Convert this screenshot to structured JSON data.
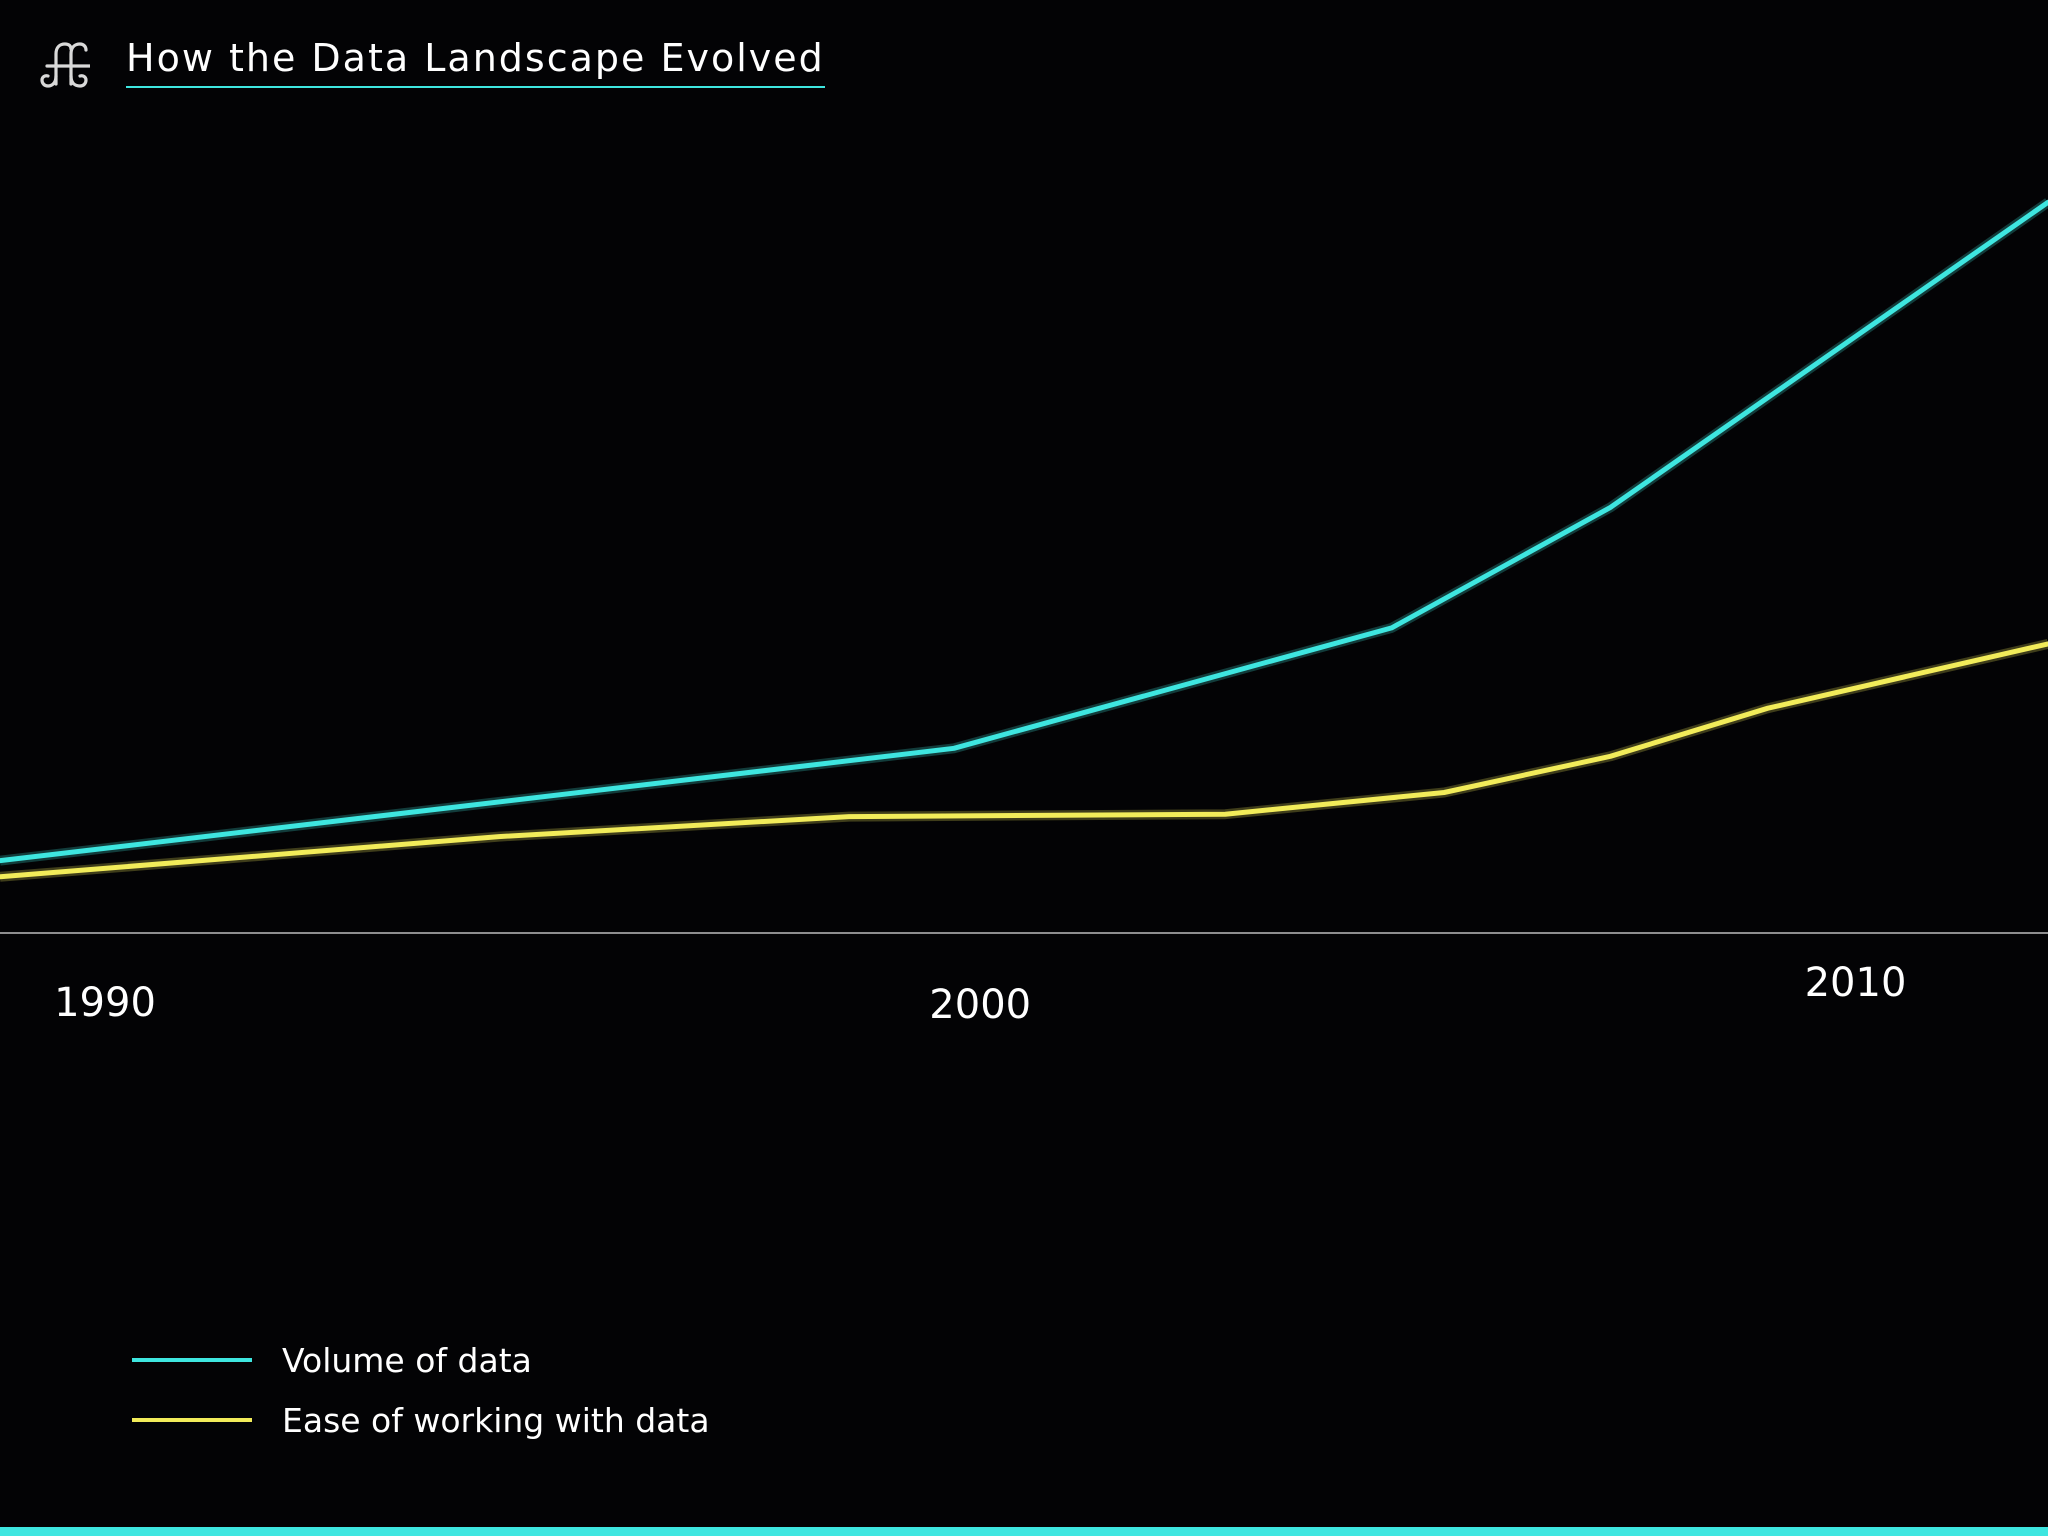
{
  "header": {
    "logo_icon": "command-key-icon",
    "title": "How the Data Landscape Evolved"
  },
  "colors": {
    "background": "#030305",
    "accent": "#3ee6e0",
    "axis": "#bdbdbd"
  },
  "chart_data": {
    "type": "line",
    "title": "How the Data Landscape Evolved",
    "xlabel": "",
    "ylabel": "",
    "x_ticks": [
      "1990",
      "2000",
      "2010"
    ],
    "xlim": [
      1988.8,
      2012.2
    ],
    "ylim": [
      0,
      100
    ],
    "grid": false,
    "y_axis_visible": false,
    "legend_position": "bottom-left",
    "series": [
      {
        "name": "Volume of data",
        "color": "#3ee6e0",
        "x": [
          1988.8,
          1999.7,
          2004.7,
          2007.2,
          2012.2
        ],
        "y": [
          9,
          23,
          38,
          53,
          91
        ]
      },
      {
        "name": "Ease of working with data",
        "color": "#f2ec5a",
        "x": [
          1988.8,
          1994.5,
          1998.5,
          2002.8,
          2005.3,
          2007.2,
          2009.0,
          2012.2
        ],
        "y": [
          7,
          12,
          14.5,
          14.8,
          17.5,
          22,
          28,
          36
        ]
      }
    ]
  },
  "bottom_bar": {
    "color": "#3ee6e0"
  }
}
